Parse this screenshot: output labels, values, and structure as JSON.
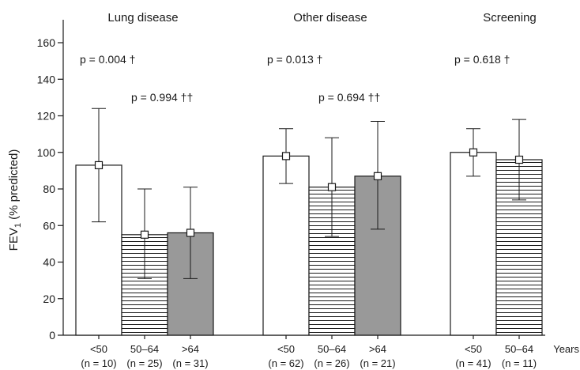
{
  "chart_data": {
    "type": "bar",
    "ylabel_main": "FEV",
    "ylabel_sub": "1",
    "ylabel_rest": " (% predicted)",
    "ylim": [
      0,
      170
    ],
    "yticks": [
      0,
      20,
      40,
      60,
      80,
      100,
      120,
      140,
      160
    ],
    "x_axis_extra_label": "Years",
    "groups": [
      {
        "title": "Lung disease",
        "p_age": "p = 0.004 †",
        "p_pair": "p = 0.994 ††",
        "bars": [
          {
            "category": "<50",
            "n": "(n = 10)",
            "value": 93,
            "error_low": 62,
            "error_high": 124,
            "fill": "white"
          },
          {
            "category": "50–64",
            "n": "(n = 25)",
            "value": 55,
            "error_low": 31,
            "error_high": 80,
            "fill": "hatched"
          },
          {
            "category": ">64",
            "n": "(n = 31)",
            "value": 56,
            "error_low": 31,
            "error_high": 81,
            "fill": "gray"
          }
        ]
      },
      {
        "title": "Other disease",
        "p_age": "p = 0.013 †",
        "p_pair": "p = 0.694 ††",
        "bars": [
          {
            "category": "<50",
            "n": "(n = 62)",
            "value": 98,
            "error_low": 83,
            "error_high": 113,
            "fill": "white"
          },
          {
            "category": "50–64",
            "n": "(n = 26)",
            "value": 81,
            "error_low": 54,
            "error_high": 108,
            "fill": "hatched"
          },
          {
            "category": ">64",
            "n": "(n = 21)",
            "value": 87,
            "error_low": 58,
            "error_high": 117,
            "fill": "gray"
          }
        ]
      },
      {
        "title": "Screening",
        "p_age": "p = 0.618 †",
        "p_pair": "",
        "bars": [
          {
            "category": "<50",
            "n": "(n = 41)",
            "value": 100,
            "error_low": 87,
            "error_high": 113,
            "fill": "white"
          },
          {
            "category": "50–64",
            "n": "(n = 11)",
            "value": 96,
            "error_low": 74,
            "error_high": 118,
            "fill": "hatched"
          }
        ]
      }
    ],
    "colors": {
      "axis": "#1a1a1a",
      "gray_fill": "#999999",
      "white_fill": "#ffffff",
      "hatch_line": "#1a1a1a"
    }
  }
}
